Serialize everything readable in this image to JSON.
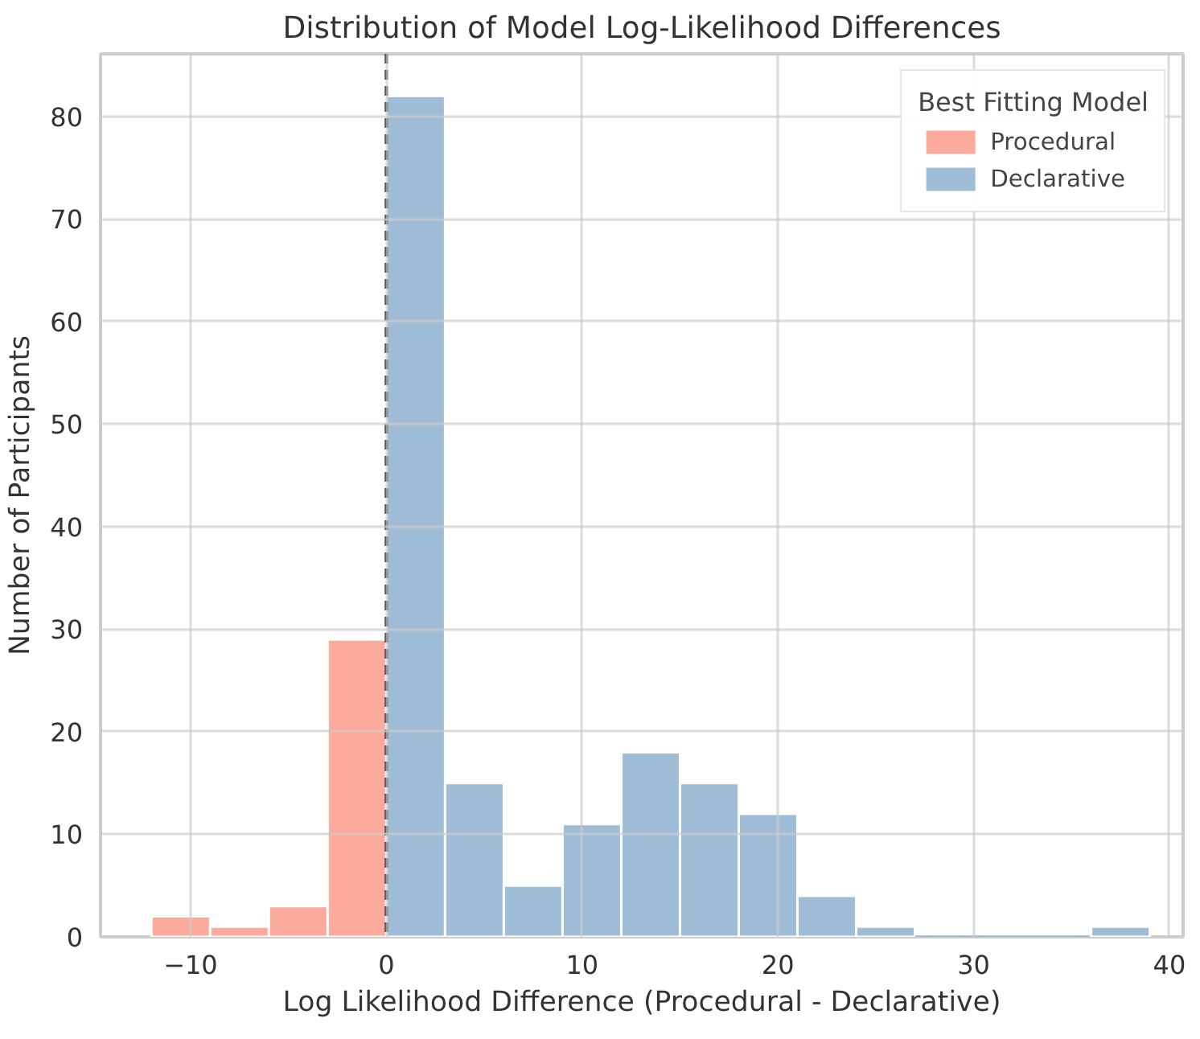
{
  "chart_data": {
    "type": "histogram",
    "title": "Distribution of Model Log-Likelihood Differences",
    "xlabel": "Log Likelihood Difference (Procedural - Declarative)",
    "ylabel": "Number of Participants",
    "legend_title": "Best Fitting Model",
    "legend": "top right",
    "grid": true,
    "xlim": [
      -14.6,
      40.7
    ],
    "xticks": [
      {
        "value": -10,
        "label": "−10"
      },
      0,
      10,
      20,
      30,
      40
    ],
    "ylim": [
      0,
      86.1
    ],
    "yticks": [
      0,
      10,
      20,
      30,
      40,
      50,
      60,
      70,
      80
    ],
    "bins": [
      -12,
      -9,
      -6,
      -3,
      0,
      3,
      6,
      9,
      12,
      15,
      18,
      21,
      24,
      27,
      30,
      33,
      36,
      39
    ],
    "series": [
      {
        "name": "Procedural",
        "color": "#fcaa9c",
        "values": [
          2,
          1,
          3,
          29,
          null,
          null,
          null,
          null,
          null,
          null,
          null,
          null,
          null,
          null,
          null,
          null,
          null
        ]
      },
      {
        "name": "Declarative",
        "color": "#a0bdd8",
        "values": [
          null,
          null,
          null,
          null,
          82,
          15,
          5,
          11,
          18,
          15,
          12,
          4,
          1,
          0,
          0,
          0,
          1
        ]
      }
    ],
    "ref_lines": [
      {
        "axis": "x",
        "value": 0,
        "color": "#222222",
        "line_style": "dashed"
      }
    ]
  }
}
